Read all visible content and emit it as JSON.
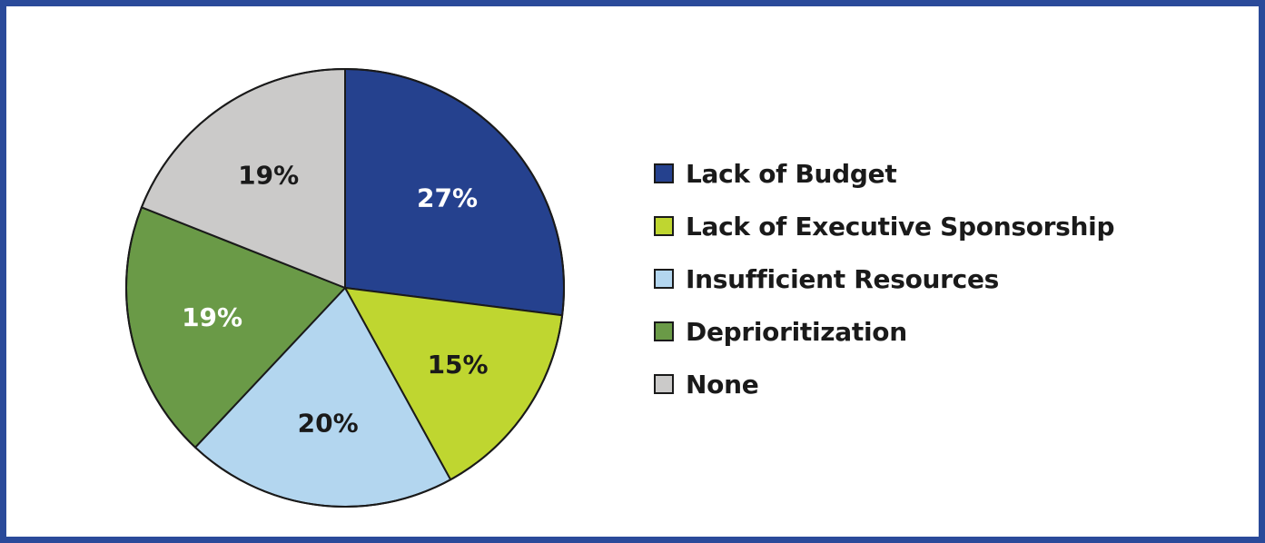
{
  "chart_data": {
    "type": "pie",
    "title": "",
    "start_angle_deg": 0,
    "direction": "clockwise",
    "slices": [
      {
        "name": "Lack of Budget",
        "value": 27,
        "label": "27%",
        "color": "#25418e",
        "label_color": "#ffffff"
      },
      {
        "name": "Lack of Executive Sponsorship",
        "value": 15,
        "label": "15%",
        "color": "#bfd630",
        "label_color": "#1a1a1a"
      },
      {
        "name": "Insufficient Resources",
        "value": 20,
        "label": "20%",
        "color": "#b3d6ef",
        "label_color": "#1a1a1a"
      },
      {
        "name": "Deprioritization",
        "value": 19,
        "label": "19%",
        "color": "#6a9a47",
        "label_color": "#ffffff"
      },
      {
        "name": "None",
        "value": 19,
        "label": "19%",
        "color": "#cbcac9",
        "label_color": "#1a1a1a"
      }
    ],
    "legend_position": "right"
  },
  "colors": {
    "border": "#2a4a9a",
    "slice_stroke": "#1a1a1a"
  }
}
